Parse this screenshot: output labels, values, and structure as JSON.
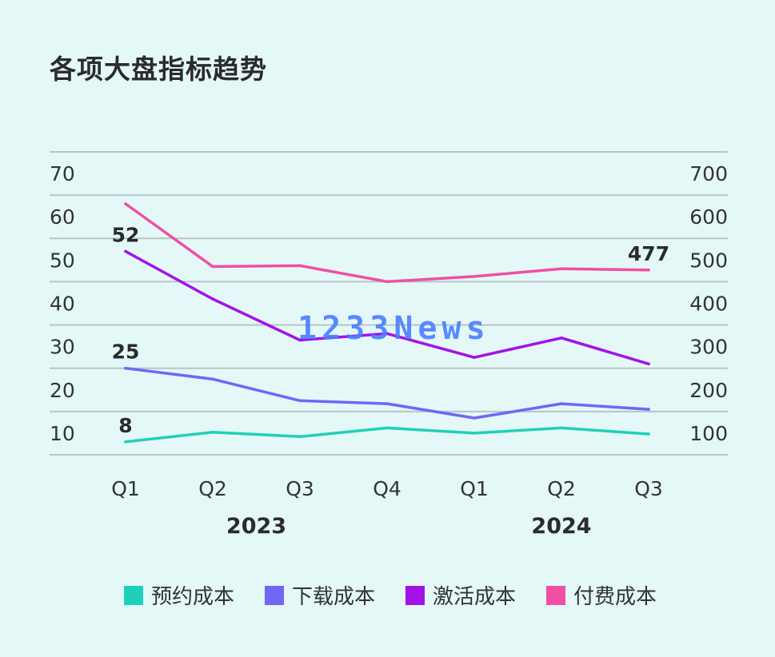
{
  "title": "各项大盘指标趋势",
  "watermark": "1233News",
  "legend": [
    {
      "label": "预约成本",
      "color": "#1fd0b8"
    },
    {
      "label": "下载成本",
      "color": "#7166f5"
    },
    {
      "label": "激活成本",
      "color": "#a312e8"
    },
    {
      "label": "付费成本",
      "color": "#f04fa4"
    }
  ],
  "chart_data": {
    "type": "line",
    "categories": [
      "Q1",
      "Q2",
      "Q3",
      "Q4",
      "Q1",
      "Q2",
      "Q3"
    ],
    "year_groups": [
      {
        "label": "2023",
        "from": 0,
        "to": 3
      },
      {
        "label": "2024",
        "from": 4,
        "to": 6
      }
    ],
    "left_axis": {
      "ticks": [
        10,
        20,
        30,
        40,
        50,
        60,
        70
      ],
      "ylim": [
        5,
        75
      ]
    },
    "right_axis": {
      "ticks": [
        100,
        200,
        300,
        400,
        500,
        600,
        700
      ],
      "ylim": [
        50,
        750
      ]
    },
    "grid": true,
    "legend_position": "bottom",
    "series": [
      {
        "name": "预约成本",
        "axis": "left",
        "color": "#1fd0b8",
        "values": [
          8,
          10.2,
          9.2,
          11.2,
          10,
          11.2,
          9.8
        ],
        "labels": [
          {
            "index": 0,
            "text": "8"
          }
        ]
      },
      {
        "name": "下载成本",
        "axis": "left",
        "color": "#7166f5",
        "values": [
          25,
          22.5,
          17.5,
          16.8,
          13.5,
          16.8,
          15.5
        ],
        "labels": [
          {
            "index": 0,
            "text": "25"
          }
        ]
      },
      {
        "name": "激活成本",
        "axis": "left",
        "color": "#a312e8",
        "values": [
          52,
          41,
          31.5,
          33,
          27.5,
          32,
          26
        ],
        "labels": [
          {
            "index": 0,
            "text": "52"
          }
        ]
      },
      {
        "name": "付费成本",
        "axis": "right",
        "color": "#f04fa4",
        "values": [
          630,
          485,
          487,
          450,
          462,
          480,
          477
        ],
        "labels": [
          {
            "index": 6,
            "text": "477"
          }
        ]
      }
    ]
  }
}
